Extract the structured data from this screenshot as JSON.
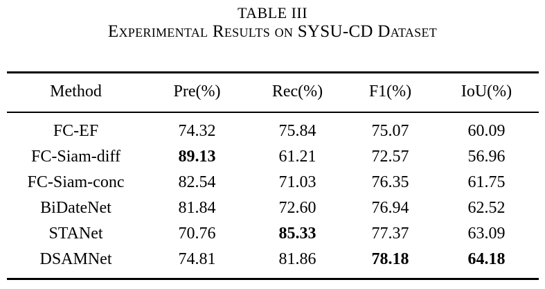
{
  "caption": {
    "line1": "TABLE III",
    "line2": "Experimental Results on SYSU-CD Dataset"
  },
  "table": {
    "columns": [
      "Method",
      "Pre(%)",
      "Rec(%)",
      "F1(%)",
      "IoU(%)"
    ],
    "rows": [
      {
        "method": "FC-EF",
        "values": [
          "74.32",
          "75.84",
          "75.07",
          "60.09"
        ],
        "bold": [
          false,
          false,
          false,
          false
        ]
      },
      {
        "method": "FC-Siam-diff",
        "values": [
          "89.13",
          "61.21",
          "72.57",
          "56.96"
        ],
        "bold": [
          true,
          false,
          false,
          false
        ]
      },
      {
        "method": "FC-Siam-conc",
        "values": [
          "82.54",
          "71.03",
          "76.35",
          "61.75"
        ],
        "bold": [
          false,
          false,
          false,
          false
        ]
      },
      {
        "method": "BiDateNet",
        "values": [
          "81.84",
          "72.60",
          "76.94",
          "62.52"
        ],
        "bold": [
          false,
          false,
          false,
          false
        ]
      },
      {
        "method": "STANet",
        "values": [
          "70.76",
          "85.33",
          "77.37",
          "63.09"
        ],
        "bold": [
          false,
          true,
          false,
          false
        ]
      },
      {
        "method": "DSAMNet",
        "values": [
          "74.81",
          "81.86",
          "78.18",
          "64.18"
        ],
        "bold": [
          false,
          false,
          true,
          true
        ]
      }
    ]
  }
}
